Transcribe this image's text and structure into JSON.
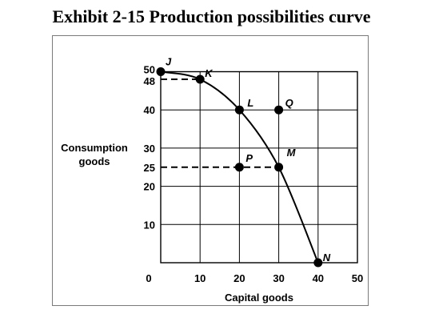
{
  "title": "Exhibit 2-15 Production possibilities curve",
  "chart_data": {
    "type": "line",
    "title": "Exhibit 2-15 Production possibilities curve",
    "xlabel": "Capital goods",
    "ylabel": [
      "Consumption",
      "goods"
    ],
    "xlim": [
      0,
      50
    ],
    "ylim": [
      0,
      50
    ],
    "x_ticks": [
      0,
      10,
      20,
      30,
      40,
      50
    ],
    "x_tick_labels": [
      "0",
      "10",
      "20",
      "30",
      "40",
      "50"
    ],
    "y_ticks": [
      10,
      20,
      25,
      30,
      40,
      48,
      50
    ],
    "y_tick_labels": [
      "10",
      "20",
      "25",
      "30",
      "40",
      "48",
      "50"
    ],
    "grid": true,
    "curve": {
      "x": [
        0,
        10,
        20,
        30,
        40
      ],
      "y": [
        50,
        48,
        40,
        25,
        0
      ]
    },
    "points": [
      {
        "label": "J",
        "x": 0,
        "y": 50
      },
      {
        "label": "K",
        "x": 10,
        "y": 48
      },
      {
        "label": "L",
        "x": 20,
        "y": 40
      },
      {
        "label": "M",
        "x": 30,
        "y": 25
      },
      {
        "label": "N",
        "x": 40,
        "y": 0
      },
      {
        "label": "P",
        "x": 20,
        "y": 25
      },
      {
        "label": "Q",
        "x": 30,
        "y": 40
      }
    ],
    "dashed_guides": [
      {
        "from": [
          0,
          48
        ],
        "to": [
          10,
          48
        ]
      },
      {
        "from": [
          0,
          25
        ],
        "to": [
          30,
          25
        ]
      }
    ]
  }
}
